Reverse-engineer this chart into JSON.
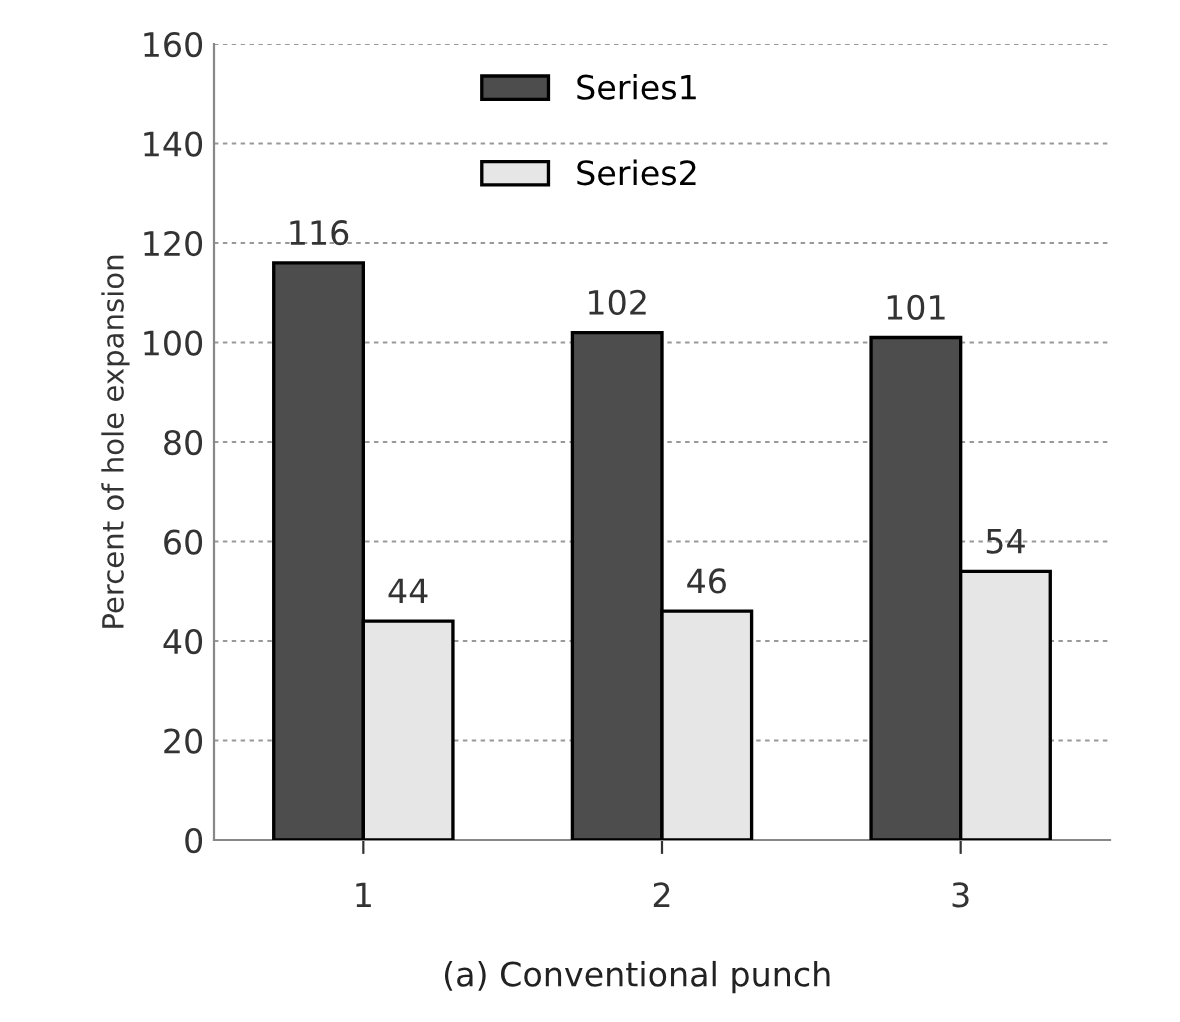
{
  "chart_data": {
    "type": "bar",
    "title": "(a) Conventional punch",
    "ylabel": "Percent of hole expansion",
    "categories": [
      "1",
      "2",
      "3"
    ],
    "series": [
      {
        "name": "Series1",
        "color": "#4d4d4d",
        "values": [
          116,
          102,
          101
        ]
      },
      {
        "name": "Series2",
        "color": "#e6e6e6",
        "values": [
          44,
          46,
          54
        ]
      }
    ],
    "ylim": [
      0,
      160
    ],
    "yticks": [
      0,
      20,
      40,
      60,
      80,
      100,
      120,
      140,
      160
    ],
    "grid": "y",
    "legend": "top",
    "data_labels": true
  }
}
